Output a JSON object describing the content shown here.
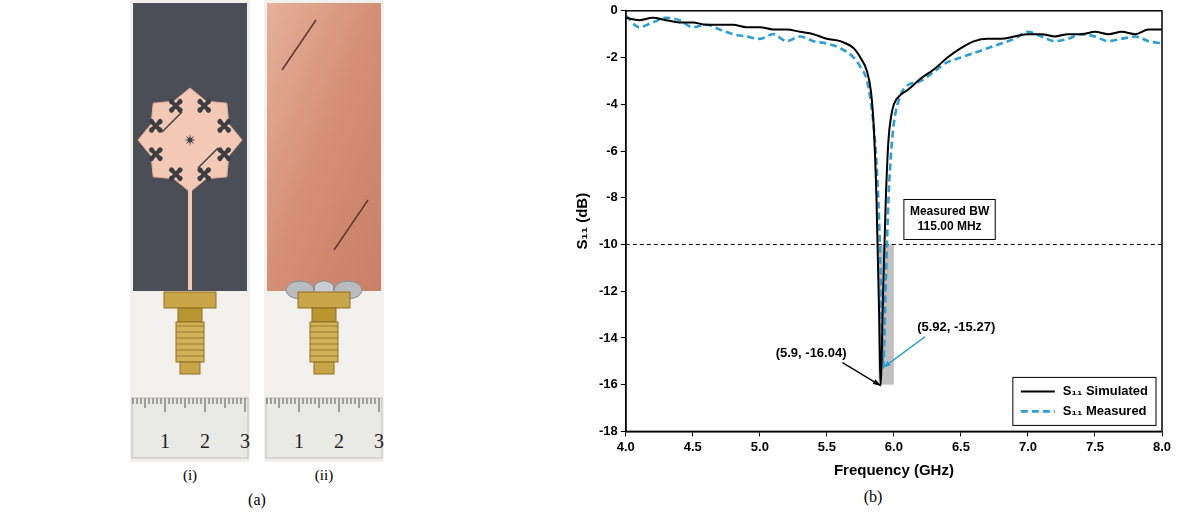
{
  "figure": {
    "panel_a": {
      "label": "(a)",
      "photos": [
        {
          "label": "(i)",
          "ruler_labels": [
            "1",
            "2",
            "3"
          ]
        },
        {
          "label": "(ii)",
          "ruler_labels": [
            "1",
            "2",
            "3"
          ]
        }
      ]
    },
    "panel_b": {
      "label": "(b)"
    }
  },
  "chart_data": {
    "type": "line",
    "x_label": "Frequency (GHz)",
    "y_label": "S₁₁ (dB)",
    "x": [
      4.0,
      4.1,
      4.2,
      4.3,
      4.4,
      4.5,
      4.6,
      4.7,
      4.8,
      4.9,
      5.0,
      5.1,
      5.2,
      5.3,
      5.4,
      5.5,
      5.6,
      5.7,
      5.75,
      5.8,
      5.83,
      5.85,
      5.87,
      5.89,
      5.9,
      5.92,
      5.94,
      5.96,
      5.98,
      6.0,
      6.05,
      6.1,
      6.2,
      6.3,
      6.4,
      6.5,
      6.6,
      6.7,
      6.8,
      6.9,
      7.0,
      7.1,
      7.2,
      7.3,
      7.4,
      7.5,
      7.6,
      7.7,
      7.8,
      7.9,
      8.0
    ],
    "series": [
      {
        "name": "S₁₁ Simulated",
        "color": "#000000",
        "line_style": "solid",
        "values": [
          -0.3,
          -0.4,
          -0.3,
          -0.4,
          -0.5,
          -0.5,
          -0.6,
          -0.6,
          -0.6,
          -0.7,
          -0.7,
          -0.8,
          -0.8,
          -0.9,
          -1.0,
          -1.2,
          -1.3,
          -1.6,
          -2.0,
          -2.6,
          -3.5,
          -5.0,
          -8.0,
          -13.0,
          -16.04,
          -12.0,
          -8.0,
          -5.5,
          -4.5,
          -4.0,
          -3.6,
          -3.4,
          -2.9,
          -2.5,
          -2.0,
          -1.6,
          -1.3,
          -1.2,
          -1.2,
          -1.1,
          -1.0,
          -1.0,
          -1.1,
          -1.0,
          -1.0,
          -0.9,
          -1.0,
          -0.9,
          -1.0,
          -0.8,
          -0.8
        ]
      },
      {
        "name": "S₁₁ Measured",
        "color": "#2a9fd6",
        "line_style": "dashed",
        "values": [
          -0.2,
          -0.7,
          -0.5,
          -0.3,
          -0.4,
          -0.7,
          -0.6,
          -0.8,
          -1.0,
          -1.1,
          -1.2,
          -1.0,
          -1.3,
          -1.1,
          -1.3,
          -1.4,
          -1.6,
          -2.0,
          -2.4,
          -3.0,
          -4.0,
          -5.0,
          -6.5,
          -9.0,
          -11.0,
          -15.27,
          -11.5,
          -8.0,
          -6.0,
          -4.8,
          -3.6,
          -3.2,
          -3.0,
          -2.6,
          -2.2,
          -2.0,
          -1.8,
          -1.6,
          -1.4,
          -1.2,
          -0.9,
          -1.1,
          -1.3,
          -1.2,
          -1.0,
          -1.1,
          -1.3,
          -1.2,
          -1.1,
          -1.3,
          -1.4
        ]
      }
    ],
    "xlim": [
      4,
      8
    ],
    "xticks": [
      {
        "value": 4,
        "label": "4.0"
      },
      {
        "value": 4.5,
        "label": "4.5"
      },
      {
        "value": 5,
        "label": "5.0"
      },
      {
        "value": 5.5,
        "label": "5.5"
      },
      {
        "value": 6,
        "label": "6.0"
      },
      {
        "value": 6.5,
        "label": "6.5"
      },
      {
        "value": 7,
        "label": "7.0"
      },
      {
        "value": 7.5,
        "label": "7.5"
      },
      {
        "value": 8,
        "label": "8.0"
      }
    ],
    "ylim": [
      -18,
      0
    ],
    "yticks": [
      -18,
      -16,
      -14,
      -12,
      -10,
      -8,
      -6,
      -4,
      -2,
      0
    ],
    "grid": false,
    "legend": "lower right",
    "reference_line": {
      "y": -10,
      "line_style": "dashed"
    },
    "shaded_band": {
      "x": [
        5.885,
        6.0
      ],
      "y": [
        -16,
        -10
      ]
    },
    "bw_box": [
      "Measured BW",
      "115.00 MHz"
    ],
    "annotations": [
      {
        "text": "(5.9, -16.04)",
        "x": 5.9,
        "y": -16.04,
        "color": "#000000"
      },
      {
        "text": "(5.92, -15.27)",
        "x": 5.92,
        "y": -15.27,
        "color": "#2a9fd6"
      }
    ]
  }
}
